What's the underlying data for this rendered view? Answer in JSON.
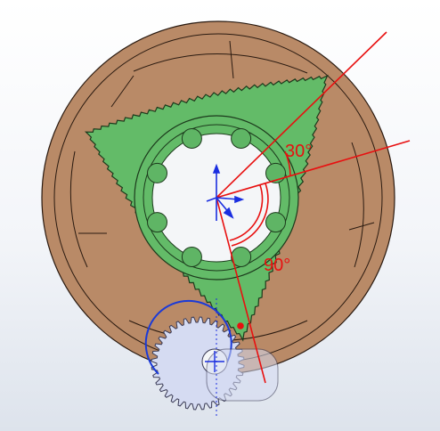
{
  "viewport": {
    "background_top": "#ffffff",
    "background_bottom": "#dde3ec"
  },
  "model": {
    "housing_color": "#b98a67",
    "housing_edge": "#2a1a10",
    "rotor_color": "#63bb68",
    "rotor_edge": "#1c3a1c",
    "pinion_color": "#d5dbf2",
    "pinion_edge": "#3a3a55",
    "selected_edge": "#1a3ad8",
    "bore_color": "#f4f6f8",
    "roller_color": "#5fb565"
  },
  "annotations": {
    "color": "#e81010",
    "angle_small": "30°",
    "angle_large": "90°"
  },
  "triad": {
    "color": "#1a2ee0",
    "icon": "origin-triad-icon"
  }
}
